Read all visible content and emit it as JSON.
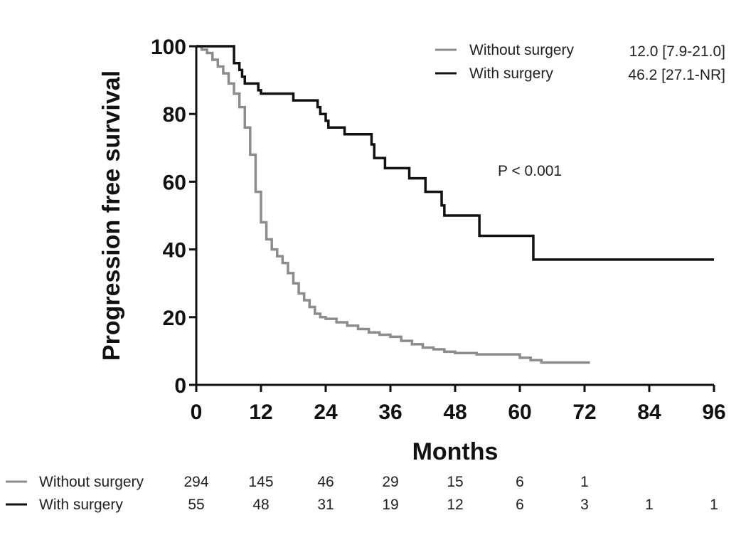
{
  "chart_data": {
    "type": "line",
    "xlabel": "Months",
    "ylabel": "Progression free survival",
    "xlim": [
      0,
      96
    ],
    "ylim": [
      0,
      100
    ],
    "xticks": [
      0,
      12,
      24,
      36,
      48,
      60,
      72,
      84,
      96
    ],
    "yticks": [
      0,
      20,
      40,
      60,
      80,
      100
    ],
    "grid": false,
    "legend_position": "top-right",
    "annotation": "P < 0.001",
    "series": [
      {
        "name": "Without surgery",
        "color": "#8c8c8c",
        "median": "12.0 [7.9-21.0]",
        "points": [
          [
            0,
            100
          ],
          [
            1,
            99
          ],
          [
            2,
            98
          ],
          [
            3,
            96
          ],
          [
            4,
            94
          ],
          [
            5,
            92
          ],
          [
            6,
            89
          ],
          [
            7,
            86
          ],
          [
            8,
            82
          ],
          [
            9,
            76
          ],
          [
            10,
            68
          ],
          [
            11,
            57
          ],
          [
            12,
            48
          ],
          [
            13,
            43
          ],
          [
            14,
            40
          ],
          [
            15,
            38
          ],
          [
            16,
            36
          ],
          [
            17,
            33
          ],
          [
            18,
            30
          ],
          [
            19,
            27
          ],
          [
            20,
            25
          ],
          [
            21,
            23
          ],
          [
            22,
            21
          ],
          [
            23,
            20
          ],
          [
            24,
            19.5
          ],
          [
            26,
            18.5
          ],
          [
            28,
            17.5
          ],
          [
            30,
            16.5
          ],
          [
            32,
            15.5
          ],
          [
            34,
            14.8
          ],
          [
            36,
            14.2
          ],
          [
            38,
            13
          ],
          [
            40,
            12
          ],
          [
            42,
            11
          ],
          [
            44,
            10.5
          ],
          [
            46,
            9.8
          ],
          [
            48,
            9.4
          ],
          [
            52,
            9
          ],
          [
            56,
            9
          ],
          [
            60,
            8
          ],
          [
            62,
            7.3
          ],
          [
            64,
            6.6
          ],
          [
            68,
            6.6
          ],
          [
            73,
            6.6
          ]
        ]
      },
      {
        "name": "With surgery",
        "color": "#111111",
        "median": "46.2 [27.1-NR]",
        "points": [
          [
            0,
            100
          ],
          [
            6,
            100
          ],
          [
            7,
            95
          ],
          [
            8,
            93
          ],
          [
            8.5,
            91
          ],
          [
            9,
            89
          ],
          [
            11,
            89
          ],
          [
            11.5,
            87
          ],
          [
            12,
            86
          ],
          [
            16,
            86
          ],
          [
            18,
            84
          ],
          [
            22,
            84
          ],
          [
            22.5,
            82
          ],
          [
            23,
            80
          ],
          [
            24,
            78
          ],
          [
            24.5,
            76
          ],
          [
            27,
            76
          ],
          [
            27.5,
            74
          ],
          [
            32,
            74
          ],
          [
            32.5,
            71
          ],
          [
            33,
            67
          ],
          [
            35,
            64
          ],
          [
            39,
            64
          ],
          [
            39.5,
            61
          ],
          [
            42,
            61
          ],
          [
            42.5,
            57
          ],
          [
            45,
            57
          ],
          [
            45.5,
            53
          ],
          [
            46,
            50
          ],
          [
            52,
            50
          ],
          [
            52.5,
            44
          ],
          [
            62,
            44
          ],
          [
            62.5,
            37
          ],
          [
            96,
            37
          ]
        ]
      }
    ],
    "risk_table": {
      "times": [
        0,
        12,
        24,
        36,
        48,
        60,
        72,
        84,
        96
      ],
      "rows": [
        {
          "label": "Without surgery",
          "color": "#8c8c8c",
          "values": [
            "294",
            "145",
            "46",
            "29",
            "15",
            "6",
            "1",
            "",
            ""
          ]
        },
        {
          "label": "With surgery",
          "color": "#111111",
          "values": [
            "55",
            "48",
            "31",
            "19",
            "12",
            "6",
            "3",
            "1",
            "1"
          ]
        }
      ]
    }
  }
}
